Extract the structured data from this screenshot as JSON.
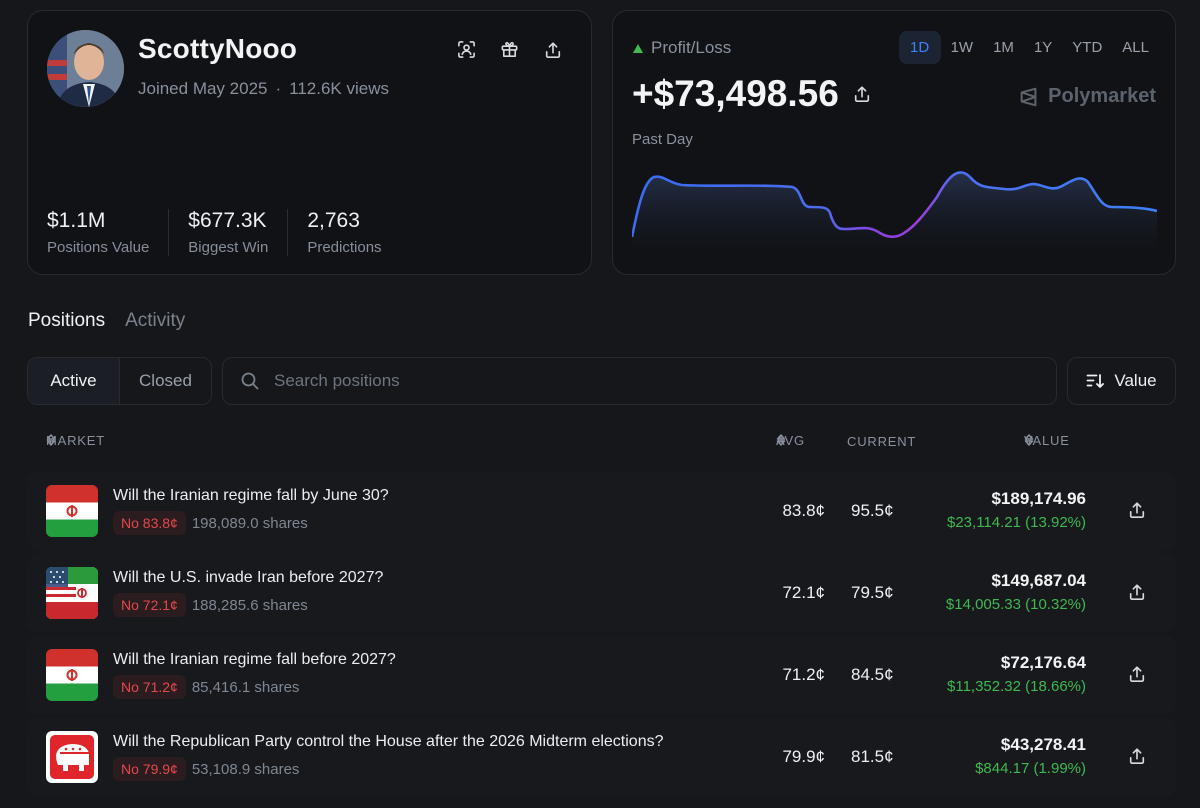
{
  "profile": {
    "username": "ScottyNooo",
    "joined": "Joined May 2025",
    "separator": "·",
    "views": "112.6K views",
    "icons": [
      "face-scan-icon",
      "gift-icon",
      "share-icon"
    ],
    "stats": [
      {
        "value": "$1.1M",
        "label": "Positions Value"
      },
      {
        "value": "$677.3K",
        "label": "Biggest Win"
      },
      {
        "value": "2,763",
        "label": "Predictions"
      }
    ]
  },
  "pnl": {
    "label": "Profit/Loss",
    "value": "+$73,498.56",
    "period": "Past Day",
    "brand": "Polymarket",
    "ranges": [
      "1D",
      "1W",
      "1M",
      "1Y",
      "YTD",
      "ALL"
    ],
    "active_range": "1D",
    "up_color": "#3fb950",
    "line_color": "#3b82f6"
  },
  "tabs": [
    "Positions",
    "Activity"
  ],
  "active_tab": "Positions",
  "filters": {
    "active": "Active",
    "closed": "Closed"
  },
  "search": {
    "placeholder": "Search positions"
  },
  "sort": {
    "label": "Value"
  },
  "table": {
    "headers": {
      "market": "MARKET",
      "avg": "AVG",
      "current": "CURRENT",
      "value": "VALUE"
    },
    "rows": [
      {
        "flag": "iran-flag",
        "title": "Will the Iranian regime fall by June 30?",
        "side": "No 83.8¢",
        "shares": "198,089.0 shares",
        "avg": "83.8¢",
        "current": "95.5¢",
        "value": "$189,174.96",
        "pnl": "$23,114.21 (13.92%)"
      },
      {
        "flag": "us-iran-flag",
        "title": "Will the U.S. invade Iran before 2027?",
        "side": "No 72.1¢",
        "shares": "188,285.6 shares",
        "avg": "72.1¢",
        "current": "79.5¢",
        "value": "$149,687.04",
        "pnl": "$14,005.33 (10.32%)"
      },
      {
        "flag": "iran-flag",
        "title": "Will the Iranian regime fall before 2027?",
        "side": "No 71.2¢",
        "shares": "85,416.1 shares",
        "avg": "71.2¢",
        "current": "84.5¢",
        "value": "$72,176.64",
        "pnl": "$11,352.32 (18.66%)"
      },
      {
        "flag": "republican-logo",
        "title": "Will the Republican Party control the House after the 2026 Midterm elections?",
        "side": "No 79.9¢",
        "shares": "53,108.9 shares",
        "avg": "79.9¢",
        "current": "81.5¢",
        "value": "$43,278.41",
        "pnl": "$844.17 (1.99%)"
      }
    ]
  }
}
